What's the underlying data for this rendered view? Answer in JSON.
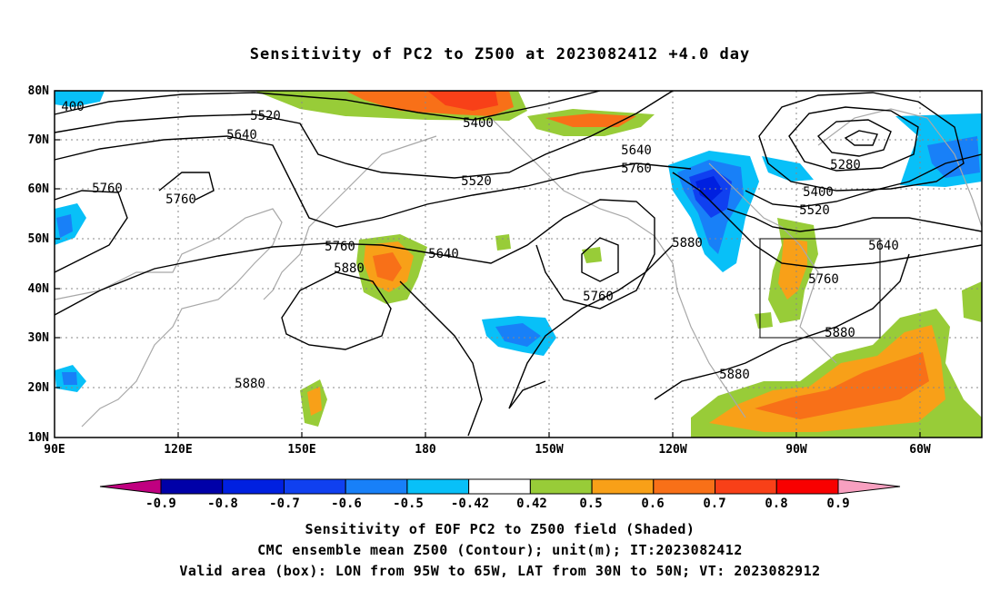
{
  "title": "Sensitivity of PC2 to Z500 at 2023082412 +4.0 day",
  "map": {
    "lon_labels": [
      "90E",
      "120E",
      "150E",
      "180",
      "150W",
      "120W",
      "90W",
      "60W"
    ],
    "lat_labels": [
      "80N",
      "70N",
      "60N",
      "50N",
      "40N",
      "30N",
      "20N",
      "10N"
    ],
    "contour_labels": [
      "400",
      "5520",
      "5640",
      "5760",
      "5760",
      "5400",
      "5640",
      "5760",
      "5520",
      "5280",
      "5400",
      "5520",
      "5760",
      "5880",
      "5640",
      "5880",
      "5640",
      "5760",
      "5760",
      "5880",
      "5880",
      "5880"
    ],
    "box": {
      "lon_from": "95W",
      "lon_to": "65W",
      "lat_from": "30N",
      "lat_to": "50N"
    }
  },
  "colorbar": {
    "labels": [
      "-0.9",
      "-0.8",
      "-0.7",
      "-0.6",
      "-0.5",
      "-0.42",
      "0.42",
      "0.5",
      "0.6",
      "0.7",
      "0.8",
      "0.9"
    ],
    "colors": [
      "#0000a8",
      "#0020e0",
      "#1040f0",
      "#1880f8",
      "#08c0f8",
      "#ffffff",
      "#98cc38",
      "#f8a018",
      "#f87018",
      "#f84018",
      "#f80000"
    ],
    "under_color": "#c00080",
    "over_color": "#f8a0c0"
  },
  "captions": [
    "Sensitivity of EOF PC2 to Z500 field (Shaded)",
    "CMC ensemble mean Z500 (Contour); unit(m); IT:2023082412",
    "Valid area (box): LON from 95W to 65W, LAT from 30N to 50N; VT: 2023082912"
  ]
}
